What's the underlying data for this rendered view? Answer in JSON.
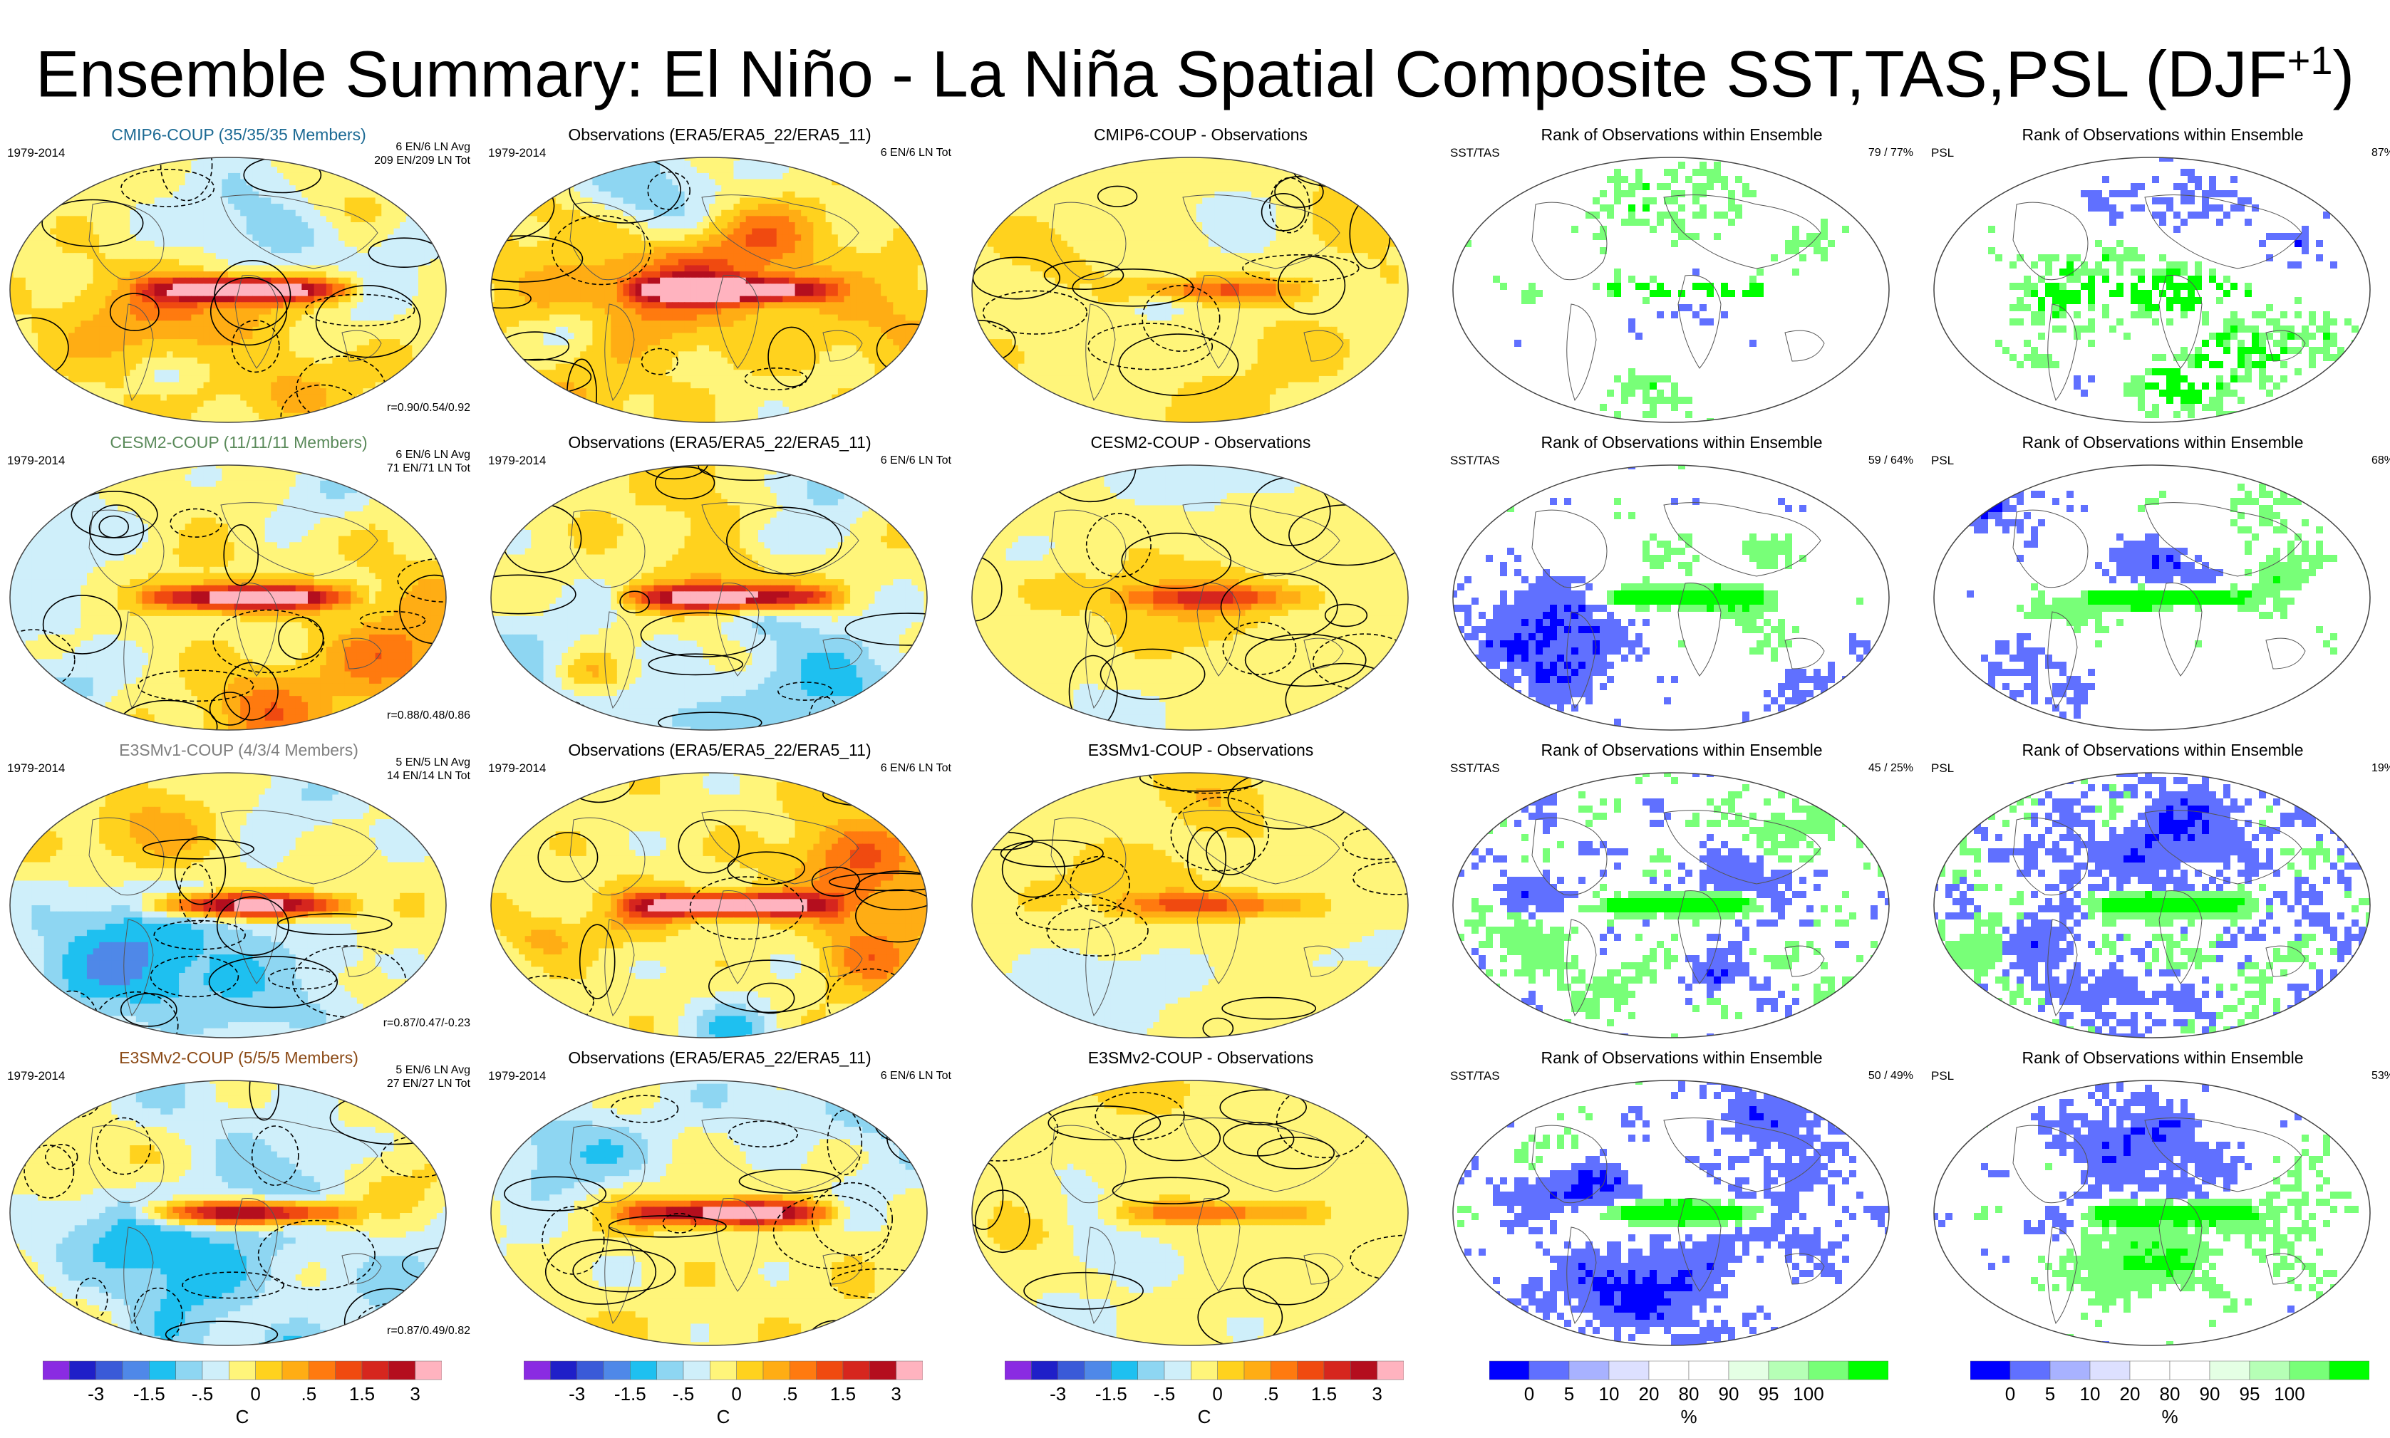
{
  "title": {
    "main": "Ensemble Summary: El Niño - La Niña Spatial Composite SST,TAS,PSL (DJF",
    "sup": "+1",
    "end": ")"
  },
  "colors": {
    "temp": [
      "#8a2be2",
      "#1f1fc8",
      "#3a5ad8",
      "#4f88e8",
      "#1ec0f0",
      "#8ed6f2",
      "#cfeffa",
      "#fff57a",
      "#ffd21e",
      "#ffad14",
      "#ff7a0f",
      "#f04a10",
      "#d6261e",
      "#b40e1e",
      "#ffb3bf"
    ],
    "rank": [
      "#0000ff",
      "#6070ff",
      "#a8b2ff",
      "#dde0ff",
      "#ffffff",
      "#ffffff",
      "#e4ffe4",
      "#b6ffb6",
      "#78ff78",
      "#00ff00"
    ],
    "contour": "#000000"
  },
  "rows": [
    {
      "model": {
        "title": "CMIP6-COUP (35/35/35 Members)",
        "title_color": "#1c6a94",
        "period": "1979-2014",
        "info1": "6 EN/6 LN Avg",
        "info2": "209 EN/209 LN Tot",
        "corr": "r=0.90/0.54/0.92",
        "seed": 11
      },
      "obs": {
        "title": "Observations (ERA5/ERA5_22/ERA5_11)",
        "period": "1979-2014",
        "info": "6 EN/6 LN Tot",
        "seed": 21
      },
      "diff": {
        "title": "CMIP6-COUP - Observations",
        "seed": 31
      },
      "rank1": {
        "title": "Rank of Observations within Ensemble",
        "label": "SST/TAS",
        "pct": "79 /  77%",
        "seed": 41,
        "level": 0.23
      },
      "rank2": {
        "title": "Rank of Observations within Ensemble",
        "label": "PSL",
        "pct": "87%",
        "seed": 51,
        "level": 0.13
      }
    },
    {
      "model": {
        "title": "CESM2-COUP (11/11/11 Members)",
        "title_color": "#5a8a5a",
        "period": "1979-2014",
        "info1": "6 EN/6 LN Avg",
        "info2": "71 EN/71 LN Tot",
        "corr": "r=0.88/0.48/0.86",
        "seed": 12
      },
      "obs": {
        "title": "Observations (ERA5/ERA5_22/ERA5_11)",
        "period": "1979-2014",
        "info": "6 EN/6 LN Tot",
        "seed": 22
      },
      "diff": {
        "title": "CESM2-COUP - Observations",
        "seed": 32
      },
      "rank1": {
        "title": "Rank of Observations within Ensemble",
        "label": "SST/TAS",
        "pct": "59 /  64%",
        "seed": 42,
        "level": 0.38
      },
      "rank2": {
        "title": "Rank of Observations within Ensemble",
        "label": "PSL",
        "pct": "68%",
        "seed": 52,
        "level": 0.32
      }
    },
    {
      "model": {
        "title": "E3SMv1-COUP (4/3/4 Members)",
        "title_color": "#808080",
        "period": "1979-2014",
        "info1": "5 EN/5 LN Avg",
        "info2": "14 EN/14 LN Tot",
        "corr": "r=0.87/0.47/-0.23",
        "seed": 13
      },
      "obs": {
        "title": "Observations (ERA5/ERA5_22/ERA5_11)",
        "period": "1979-2014",
        "info": "6 EN/6 LN Tot",
        "seed": 23
      },
      "diff": {
        "title": "E3SMv1-COUP - Observations",
        "seed": 33
      },
      "rank1": {
        "title": "Rank of Observations within Ensemble",
        "label": "SST/TAS",
        "pct": "45 /  25%",
        "seed": 43,
        "level": 0.65
      },
      "rank2": {
        "title": "Rank of Observations within Ensemble",
        "label": "PSL",
        "pct": "19%",
        "seed": 53,
        "level": 0.81
      }
    },
    {
      "model": {
        "title": "E3SMv2-COUP (5/5/5 Members)",
        "title_color": "#8b4a16",
        "period": "1979-2014",
        "info1": "5 EN/6 LN Avg",
        "info2": "27 EN/27 LN Tot",
        "corr": "r=0.87/0.49/0.82",
        "seed": 14
      },
      "obs": {
        "title": "Observations (ERA5/ERA5_22/ERA5_11)",
        "period": "1979-2014",
        "info": "6 EN/6 LN Tot",
        "seed": 24
      },
      "diff": {
        "title": "E3SMv2-COUP - Observations",
        "seed": 34
      },
      "rank1": {
        "title": "Rank of Observations within Ensemble",
        "label": "SST/TAS",
        "pct": "50 /  49%",
        "seed": 44,
        "level": 0.5
      },
      "rank2": {
        "title": "Rank of Observations within Ensemble",
        "label": "PSL",
        "pct": "53%",
        "seed": 54,
        "level": 0.47
      }
    }
  ],
  "colorbars": {
    "temp": {
      "ticks": [
        "-3",
        "-1.5",
        "-.5",
        "0",
        ".5",
        "1.5",
        "3"
      ],
      "unit": "C"
    },
    "rank": {
      "ticks": [
        "0",
        "5",
        "10",
        "20",
        "80",
        "90",
        "95",
        "100"
      ],
      "unit": "%"
    }
  },
  "chart_data": {
    "type": "heatmap",
    "title": "Ensemble Summary: El Niño - La Niña Spatial Composite SST,TAS,PSL (DJF+1)",
    "variables": [
      "SST",
      "TAS",
      "PSL"
    ],
    "period": "1979-2014",
    "temperature_levels_C": [
      "-3",
      "-1.5",
      "-.5",
      "0",
      ".5",
      "1.5",
      "3"
    ],
    "rank_levels_percent": [
      "0",
      "5",
      "10",
      "20",
      "80",
      "90",
      "95",
      "100"
    ],
    "panels": [
      {
        "row": 1,
        "model": "CMIP6-COUP",
        "members": "35/35/35",
        "pattern_correlation": [
          0.9,
          0.54,
          0.92
        ],
        "rank_sst_tas": [
          79,
          77
        ],
        "rank_psl": 87
      },
      {
        "row": 2,
        "model": "CESM2-COUP",
        "members": "11/11/11",
        "pattern_correlation": [
          0.88,
          0.48,
          0.86
        ],
        "rank_sst_tas": [
          59,
          64
        ],
        "rank_psl": 68
      },
      {
        "row": 3,
        "model": "E3SMv1-COUP",
        "members": "4/3/4",
        "pattern_correlation": [
          0.87,
          0.47,
          -0.23
        ],
        "rank_sst_tas": [
          45,
          25
        ],
        "rank_psl": 19
      },
      {
        "row": 4,
        "model": "E3SMv2-COUP",
        "members": "5/5/5",
        "pattern_correlation": [
          0.87,
          0.49,
          0.82
        ],
        "rank_sst_tas": [
          50,
          49
        ],
        "rank_psl": 53
      }
    ]
  }
}
